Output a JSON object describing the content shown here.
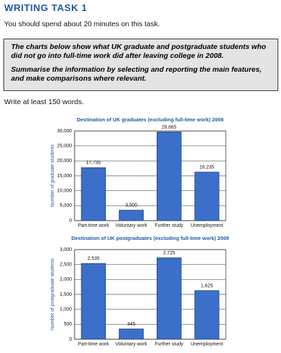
{
  "header": {
    "title": "WRITING TASK 1",
    "time_note": "You should spend about 20 minutes on this task."
  },
  "task": {
    "prompt": "The charts below show what UK graduate and postgraduate students who did not go into full-time work did after leaving college in 2008.",
    "instruction": "Summarise the information by selecting and reporting the main features, and make comparisons where relevant."
  },
  "word_note": "Write at least 150 words.",
  "chart_data": [
    {
      "type": "bar",
      "title": "Destination of UK graduates (excluding full-time work) 2008",
      "ylabel": "Number of graduate students",
      "categories": [
        "Part-time work",
        "Voluntary work",
        "Further study",
        "Unemployment"
      ],
      "values": [
        17735,
        3500,
        29665,
        16235
      ],
      "value_labels": [
        "17,735",
        "3,500",
        "29,665",
        "16,235"
      ],
      "color": "#3b6fc9",
      "ylim": [
        0,
        30000
      ],
      "yticks": [
        0,
        {
          "value": 5000,
          "label": "5,000"
        },
        {
          "value": 10000,
          "label": "10,000"
        },
        {
          "value": 15000,
          "label": "15,000"
        },
        {
          "value": 20000,
          "label": "20,000"
        },
        {
          "value": 25000,
          "label": "25,000"
        },
        {
          "value": 30000,
          "label": "30,000"
        }
      ],
      "grid": true
    },
    {
      "type": "bar",
      "title": "Destination of UK postgraduates (excluding full-time work) 2008",
      "ylabel": "Number of postgraduate students",
      "categories": [
        "Part-time work",
        "Voluntary work",
        "Further study",
        "Unemployment"
      ],
      "values": [
        2535,
        345,
        2725,
        1625
      ],
      "value_labels": [
        "2,535",
        "345",
        "2,725",
        "1,625"
      ],
      "color": "#3b6fc9",
      "ylim": [
        0,
        3000
      ],
      "yticks": [
        0,
        500,
        {
          "value": 1000,
          "label": "1,000"
        },
        {
          "value": 1500,
          "label": "1,500"
        },
        {
          "value": 2000,
          "label": "2,000"
        },
        {
          "value": 2500,
          "label": "2,500"
        },
        {
          "value": 3000,
          "label": "3,000"
        }
      ],
      "grid": true
    }
  ]
}
